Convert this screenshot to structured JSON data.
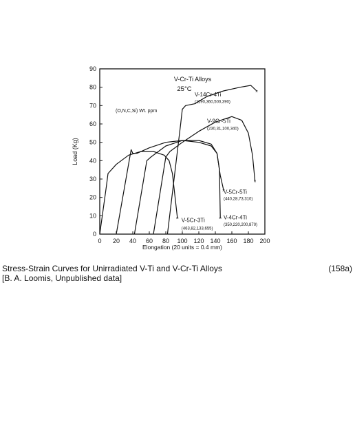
{
  "chart_data": {
    "type": "line",
    "title": "V-Cr-Ti Alloys",
    "subtitle": "25°C",
    "annotation": "(O,N,C,Si) Wt. ppm",
    "xlabel": "Elongation (20 units = 0.4 mm)",
    "ylabel": "Load (Kg)",
    "xlim": [
      0,
      200
    ],
    "ylim": [
      0,
      90
    ],
    "xticks": [
      "0",
      "20",
      "40",
      "60",
      "80",
      "100",
      "120",
      "140",
      "160",
      "180",
      "200"
    ],
    "yticks": [
      "0",
      "10",
      "20",
      "30",
      "40",
      "50",
      "60",
      "70",
      "80",
      "90"
    ],
    "grid": false,
    "series": [
      {
        "name": "V-5Cr-3Ti",
        "sublabel": "(463,82,133,655)",
        "points": [
          [
            0,
            0
          ],
          [
            8,
            26
          ],
          [
            10,
            33
          ],
          [
            20,
            38
          ],
          [
            35,
            43
          ],
          [
            50,
            45
          ],
          [
            65,
            45
          ],
          [
            78,
            43
          ],
          [
            84,
            40
          ],
          [
            88,
            33
          ],
          [
            90,
            25
          ],
          [
            94,
            9
          ]
        ]
      },
      {
        "name": "V-4Cr-4Ti",
        "sublabel": "(350,220,200,870)",
        "points": [
          [
            20,
            0
          ],
          [
            38,
            46
          ],
          [
            40,
            44
          ],
          [
            45,
            44
          ],
          [
            60,
            47
          ],
          [
            80,
            50
          ],
          [
            100,
            51
          ],
          [
            120,
            50
          ],
          [
            135,
            48
          ],
          [
            142,
            44
          ],
          [
            145,
            35
          ],
          [
            146,
            9
          ]
        ]
      },
      {
        "name": "V-5Cr-5Ti",
        "sublabel": "(440,28,73,310)",
        "points": [
          [
            42,
            0
          ],
          [
            57,
            40
          ],
          [
            62,
            42
          ],
          [
            80,
            48
          ],
          [
            100,
            51
          ],
          [
            120,
            51
          ],
          [
            135,
            49
          ],
          [
            142,
            44
          ],
          [
            146,
            32
          ],
          [
            150,
            24
          ]
        ]
      },
      {
        "name": "V-9Cr-5Ti",
        "sublabel": "(230,31,100,340)",
        "points": [
          [
            65,
            0
          ],
          [
            80,
            42
          ],
          [
            85,
            45
          ],
          [
            100,
            50
          ],
          [
            120,
            56
          ],
          [
            140,
            61
          ],
          [
            160,
            64
          ],
          [
            172,
            62
          ],
          [
            180,
            55
          ],
          [
            185,
            43
          ],
          [
            188,
            29
          ]
        ]
      },
      {
        "name": "V-14Cr-4Ti",
        "sublabel": "(1190,360,500,390)",
        "points": [
          [
            82,
            0
          ],
          [
            98,
            60
          ],
          [
            100,
            68
          ],
          [
            104,
            70
          ],
          [
            115,
            71
          ],
          [
            130,
            75
          ],
          [
            150,
            78
          ],
          [
            170,
            80
          ],
          [
            183,
            81
          ],
          [
            190,
            78
          ]
        ]
      }
    ]
  },
  "caption": {
    "line1": "Stress-Strain Curves for Unirradiated V-Ti and V-Cr-Ti Alloys",
    "line2": "[B. A. Loomis, Unpublished data]",
    "figure_number": "(158a)"
  }
}
